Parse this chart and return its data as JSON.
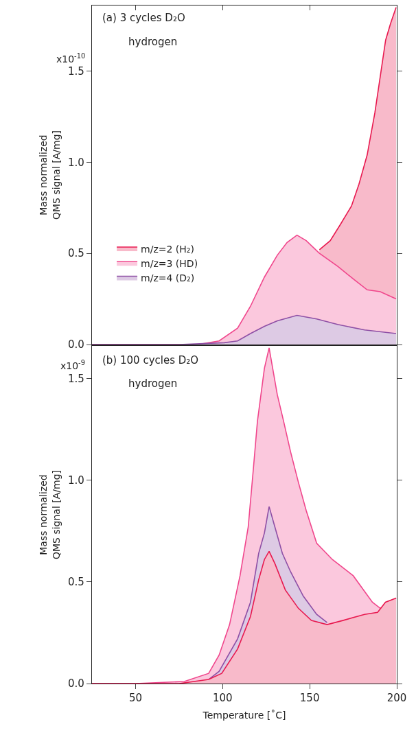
{
  "chart_data": [
    {
      "type": "area",
      "ylabel": "Mass normalized\nQMS signal [A/mg]",
      "annotations": [
        "(a) 3 cycles D₂O",
        "hydrogen",
        "x10$^{-10}$"
      ],
      "legend": "left",
      "tick_labels": "y",
      "xlim": [
        25,
        200
      ],
      "xticks": [
        {
          "value": 50,
          "label": null
        },
        {
          "value": 100,
          "label": null
        },
        {
          "value": 150,
          "label": null
        },
        {
          "value": 200,
          "label": null
        }
      ],
      "ylim": [
        0,
        1.86
      ],
      "yticks": [
        {
          "value": 0,
          "label": "0.0"
        },
        {
          "value": 0.5,
          "label": "0.5"
        },
        {
          "value": 1,
          "label": "1.0"
        },
        {
          "value": 1.5,
          "label": "1.5"
        }
      ],
      "series": [
        {
          "name": "m/z=2 (H₂)",
          "color": "#e8194f",
          "x": [
            155.6,
            161.8,
            167.7,
            174,
            178.3,
            183,
            187.4,
            190.5,
            193.6,
            196.4,
            199.6
          ],
          "values": [
            0.52,
            0.57,
            0.66,
            0.76,
            0.88,
            1.04,
            1.27,
            1.47,
            1.67,
            1.76,
            1.85
          ]
        },
        {
          "name": "m/z=3 (HD)",
          "color": "#f0468c",
          "x": [
            25,
            50,
            75,
            85.7,
            98,
            108.6,
            116,
            124,
            131.4,
            137,
            142.7,
            148,
            155.6,
            166,
            175,
            183,
            190.5,
            199.6
          ],
          "values": [
            0,
            0,
            0,
            0,
            0.02,
            0.09,
            0.21,
            0.37,
            0.49,
            0.56,
            0.6,
            0.57,
            0.5,
            0.43,
            0.36,
            0.3,
            0.29,
            0.25
          ]
        },
        {
          "name": "m/z=4 (D₂)",
          "color": "#8e4fa5",
          "x": [
            25,
            50,
            75,
            101,
            108.6,
            116,
            124,
            131.4,
            142.7,
            154,
            166,
            181.5,
            199.6
          ],
          "values": [
            0,
            0,
            0,
            0.01,
            0.02,
            0.06,
            0.1,
            0.13,
            0.16,
            0.14,
            0.11,
            0.08,
            0.06
          ]
        }
      ]
    },
    {
      "type": "area",
      "ylabel": "Mass normalized\nQMS signal [A/mg]",
      "xlabel": "Temperature [˚C]",
      "annotations": [
        "(b) 100 cycles D₂O",
        "hydrogen",
        "x10$^{-9}$"
      ],
      "xlim": [
        25,
        200
      ],
      "xticks": [
        50,
        100,
        150,
        200
      ],
      "ylim": [
        0,
        1.66
      ],
      "yticks": [
        {
          "value": 0,
          "label": "0.0"
        },
        {
          "value": 0.5,
          "label": "0.5"
        },
        {
          "value": 1,
          "label": "1.0"
        },
        {
          "value": 1.5,
          "label": "1.5"
        }
      ],
      "series": [
        {
          "color": "#f0468c",
          "x": [
            25,
            50,
            78,
            92,
            98,
            104,
            110,
            114.7,
            117.6,
            120,
            124,
            126.7,
            131.4,
            135,
            139,
            143.5,
            148,
            154,
            163,
            175,
            186,
            190.5,
            199.6
          ],
          "values": [
            0,
            0,
            0.01,
            0.05,
            0.14,
            0.29,
            0.53,
            0.77,
            1.05,
            1.29,
            1.55,
            1.65,
            1.42,
            1.29,
            1.14,
            0.99,
            0.85,
            0.69,
            0.61,
            0.53,
            0.4,
            0.37,
            0.42
          ]
        },
        {
          "color": "#8e4fa5",
          "x": [
            92,
            98,
            108.6,
            116,
            120.7,
            124,
            126.7,
            130,
            134.3,
            139,
            146.3,
            154,
            160
          ],
          "values": [
            0.02,
            0.06,
            0.22,
            0.4,
            0.64,
            0.74,
            0.87,
            0.77,
            0.64,
            0.55,
            0.43,
            0.34,
            0.3
          ]
        },
        {
          "color": "#e8194f",
          "x": [
            25,
            50,
            75,
            92,
            99.5,
            108.6,
            116,
            120.7,
            124,
            126.7,
            130,
            136,
            143.5,
            151,
            160,
            169,
            181.5,
            189,
            193.5,
            199.6
          ],
          "values": [
            0,
            0,
            0,
            0.02,
            0.05,
            0.17,
            0.33,
            0.51,
            0.61,
            0.65,
            0.59,
            0.46,
            0.37,
            0.31,
            0.29,
            0.31,
            0.34,
            0.35,
            0.4,
            0.42
          ]
        }
      ]
    }
  ]
}
